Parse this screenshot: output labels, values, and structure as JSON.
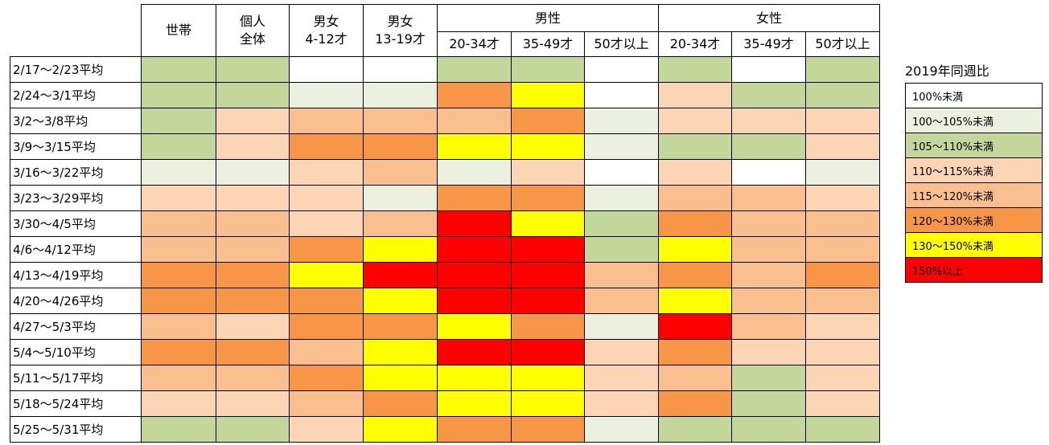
{
  "chart_data": {
    "type": "heatmap",
    "headers": {
      "top": [
        "世帯",
        "個人\n全体",
        "男女\n4-12才",
        "男女\n13-19才",
        "男性",
        "女性"
      ],
      "sub": [
        "20-34才",
        "35-49才",
        "50才以上",
        "20-34才",
        "35-49才",
        "50才以上"
      ]
    },
    "rows": [
      "2/17～2/23平均",
      "2/24～3/1平均",
      "3/2～3/8平均",
      "3/9～3/15平均",
      "3/16～3/22平均",
      "3/23～3/29平均",
      "3/30～4/5平均",
      "4/6～4/12平均",
      "4/13～4/19平均",
      "4/20～4/26平均",
      "4/27～5/3平均",
      "5/4～5/10平均",
      "5/11～5/17平均",
      "5/18～5/24平均",
      "5/25～5/31平均"
    ],
    "levels": [
      [
        2,
        2,
        0,
        0,
        2,
        2,
        0,
        2,
        0,
        2
      ],
      [
        2,
        2,
        1,
        1,
        5,
        6,
        0,
        3,
        2,
        2
      ],
      [
        2,
        3,
        4,
        4,
        4,
        5,
        1,
        3,
        3,
        3
      ],
      [
        2,
        3,
        5,
        5,
        6,
        6,
        1,
        2,
        2,
        3
      ],
      [
        1,
        1,
        3,
        4,
        1,
        3,
        0,
        3,
        0,
        1
      ],
      [
        3,
        3,
        3,
        1,
        5,
        5,
        1,
        4,
        4,
        3
      ],
      [
        4,
        4,
        3,
        4,
        7,
        6,
        2,
        5,
        4,
        4
      ],
      [
        4,
        4,
        5,
        6,
        7,
        7,
        2,
        6,
        4,
        4
      ],
      [
        5,
        5,
        6,
        7,
        7,
        7,
        4,
        5,
        4,
        5
      ],
      [
        5,
        5,
        5,
        6,
        7,
        7,
        4,
        6,
        4,
        4
      ],
      [
        4,
        3,
        5,
        5,
        6,
        5,
        1,
        7,
        4,
        3
      ],
      [
        5,
        5,
        4,
        6,
        7,
        7,
        3,
        5,
        3,
        3
      ],
      [
        4,
        4,
        5,
        6,
        6,
        6,
        3,
        4,
        2,
        3
      ],
      [
        3,
        3,
        4,
        5,
        6,
        6,
        3,
        5,
        2,
        3
      ],
      [
        2,
        2,
        3,
        6,
        5,
        5,
        1,
        2,
        2,
        2
      ]
    ],
    "legend": {
      "title": "2019年同週比",
      "items": [
        {
          "label": "100%未満",
          "color": "#ffffff"
        },
        {
          "label": "100～105%未満",
          "color": "#ebf1de"
        },
        {
          "label": "105～110%未満",
          "color": "#c4d79b"
        },
        {
          "label": "110～115%未満",
          "color": "#fcd5b4"
        },
        {
          "label": "115～120%未満",
          "color": "#fabf8f"
        },
        {
          "label": "120～130%未満",
          "color": "#f79646"
        },
        {
          "label": "130～150%未満",
          "color": "#ffff00"
        },
        {
          "label": "150%以上",
          "color": "#ff0000"
        }
      ]
    }
  }
}
